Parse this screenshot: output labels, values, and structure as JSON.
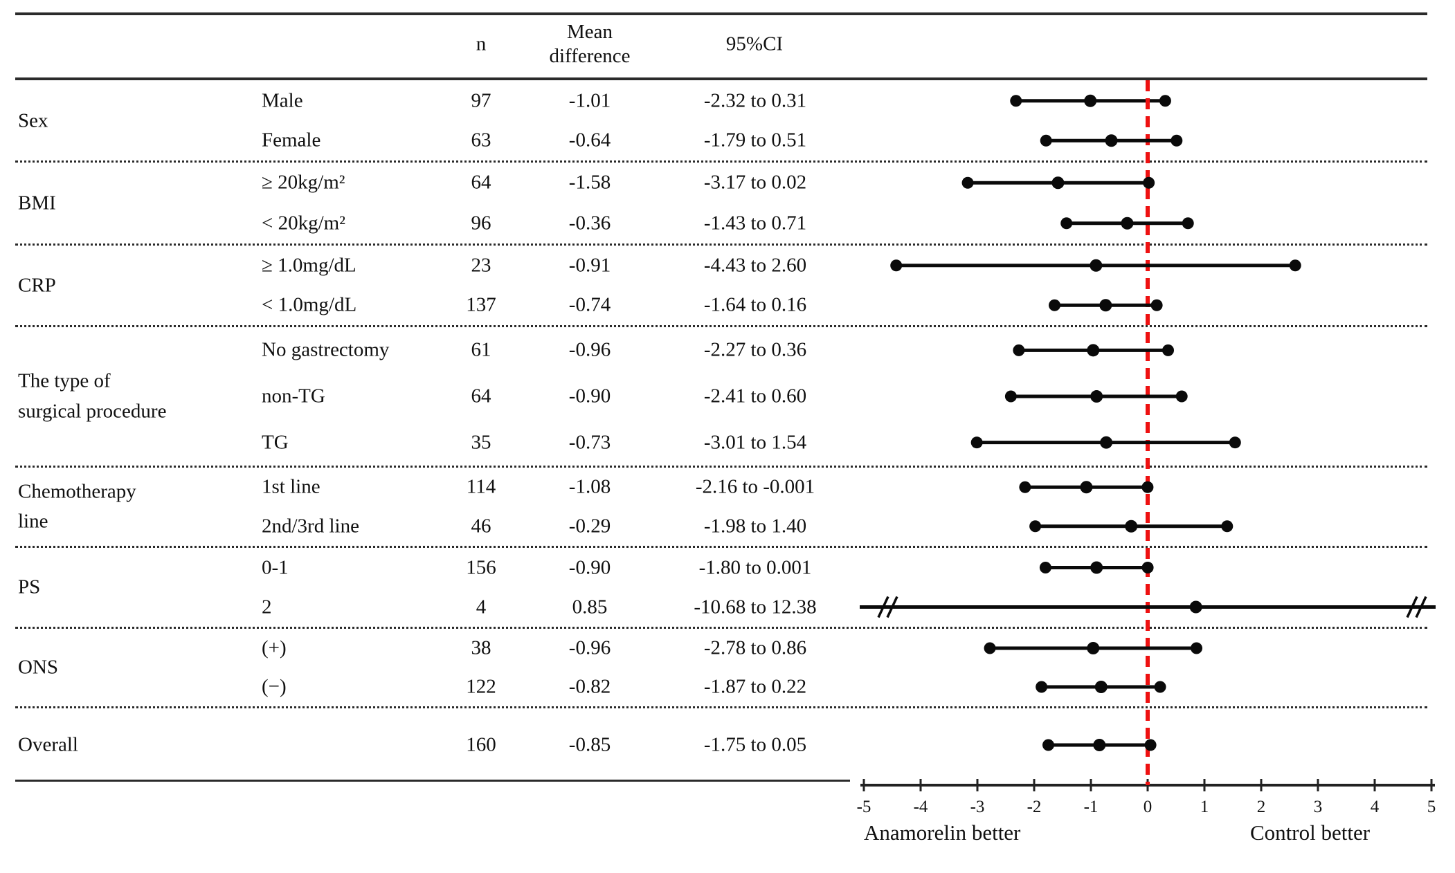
{
  "table": {
    "headers": {
      "n": "n",
      "mean_difference": "Mean\ndifference",
      "ci": "95%CI"
    }
  },
  "colors": {
    "zero_line": "#ee1111",
    "text": "#111111",
    "marker": "#0a0a0a"
  },
  "chart_data": {
    "type": "forest",
    "xlim": [
      -5,
      5
    ],
    "axis": {
      "tick_values": [
        -5,
        -4,
        -3,
        -2,
        -1,
        0,
        1,
        2,
        3,
        4,
        5
      ],
      "tick_labels": [
        "-5",
        "-4",
        "-3",
        "-2",
        "-1",
        "0",
        "1",
        "2",
        "3",
        "4",
        "5"
      ]
    },
    "zero_line_x": 0,
    "xlabel_left": "Anamorelin better",
    "xlabel_right": "Control better",
    "groups": [
      {
        "label": "Sex",
        "rows": [
          {
            "subgroup": "Male",
            "n": "97",
            "mean": "-1.01",
            "mean_v": -1.01,
            "ci_text": "-2.32 to 0.31",
            "ci": [
              -2.32,
              0.31
            ]
          },
          {
            "subgroup": "Female",
            "n": "63",
            "mean": "-0.64",
            "mean_v": -0.64,
            "ci_text": "-1.79 to 0.51",
            "ci": [
              -1.79,
              0.51
            ]
          }
        ]
      },
      {
        "label": "BMI",
        "rows": [
          {
            "subgroup": "≥ 20kg/m²",
            "n": "64",
            "mean": "-1.58",
            "mean_v": -1.58,
            "ci_text": "-3.17 to 0.02",
            "ci": [
              -3.17,
              0.02
            ]
          },
          {
            "subgroup": "< 20kg/m²",
            "n": "96",
            "mean": "-0.36",
            "mean_v": -0.36,
            "ci_text": "-1.43 to 0.71",
            "ci": [
              -1.43,
              0.71
            ]
          }
        ]
      },
      {
        "label": "CRP",
        "rows": [
          {
            "subgroup": "≥ 1.0mg/dL",
            "n": "23",
            "mean": "-0.91",
            "mean_v": -0.91,
            "ci_text": "-4.43 to 2.60",
            "ci": [
              -4.43,
              2.6
            ]
          },
          {
            "subgroup": "< 1.0mg/dL",
            "n": "137",
            "mean": "-0.74",
            "mean_v": -0.74,
            "ci_text": "-1.64 to 0.16",
            "ci": [
              -1.64,
              0.16
            ]
          }
        ]
      },
      {
        "label": "The type of\nsurgical procedure",
        "rows": [
          {
            "subgroup": "No gastrectomy",
            "n": "61",
            "mean": "-0.96",
            "mean_v": -0.96,
            "ci_text": "-2.27 to 0.36",
            "ci": [
              -2.27,
              0.36
            ]
          },
          {
            "subgroup": "non-TG",
            "n": "64",
            "mean": "-0.90",
            "mean_v": -0.9,
            "ci_text": "-2.41 to 0.60",
            "ci": [
              -2.41,
              0.6
            ]
          },
          {
            "subgroup": "TG",
            "n": "35",
            "mean": "-0.73",
            "mean_v": -0.73,
            "ci_text": "-3.01 to 1.54",
            "ci": [
              -3.01,
              1.54
            ]
          }
        ]
      },
      {
        "label": "Chemotherapy\nline",
        "rows": [
          {
            "subgroup": "1st line",
            "n": "114",
            "mean": "-1.08",
            "mean_v": -1.08,
            "ci_text": "-2.16 to -0.001",
            "ci": [
              -2.16,
              -0.001
            ]
          },
          {
            "subgroup": "2nd/3rd line",
            "n": "46",
            "mean": "-0.29",
            "mean_v": -0.29,
            "ci_text": "-1.98 to 1.40",
            "ci": [
              -1.98,
              1.4
            ]
          }
        ]
      },
      {
        "label": "PS",
        "rows": [
          {
            "subgroup": "0-1",
            "n": "156",
            "mean": "-0.90",
            "mean_v": -0.9,
            "ci_text": "-1.80 to 0.001",
            "ci": [
              -1.8,
              0.001
            ]
          },
          {
            "subgroup": "2",
            "n": "4",
            "mean": "0.85",
            "mean_v": 0.85,
            "ci_text": "-10.68 to 12.38",
            "ci": [
              -10.68,
              12.38
            ]
          }
        ]
      },
      {
        "label": "ONS",
        "rows": [
          {
            "subgroup": "(+)",
            "n": "38",
            "mean": "-0.96",
            "mean_v": -0.96,
            "ci_text": "-2.78 to 0.86",
            "ci": [
              -2.78,
              0.86
            ]
          },
          {
            "subgroup": "(−)",
            "n": "122",
            "mean": "-0.82",
            "mean_v": -0.82,
            "ci_text": "-1.87 to 0.22",
            "ci": [
              -1.87,
              0.22
            ]
          }
        ]
      },
      {
        "label": "Overall",
        "rows": [
          {
            "subgroup": "",
            "n": "160",
            "mean": "-0.85",
            "mean_v": -0.85,
            "ci_text": "-1.75 to 0.05",
            "ci": [
              -1.75,
              0.05
            ]
          }
        ]
      }
    ]
  }
}
